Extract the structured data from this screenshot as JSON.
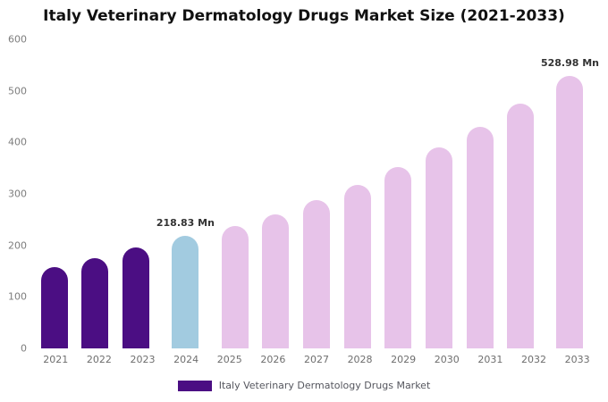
{
  "title": "Italy Veterinary Dermatology Drugs Market Size (2021-2033)",
  "legend": {
    "label": "Italy Veterinary Dermatology Drugs Market",
    "swatch_color": "#4b0e83"
  },
  "colors": {
    "dark_purple": "#4b0e83",
    "highlight_blue": "#a2cbe0",
    "forecast_pink": "#e7c3e9",
    "title_text": "#111111",
    "axis_text": "#7d7d7d",
    "annotation_text": "#333333",
    "background": "#ffffff"
  },
  "chart_data": {
    "type": "bar",
    "title": "Italy Veterinary Dermatology Drugs Market Size (2021-2033)",
    "xlabel": "",
    "ylabel": "",
    "ylim": [
      0,
      600
    ],
    "yticks": [
      0,
      100,
      200,
      300,
      400,
      500,
      600
    ],
    "grid": false,
    "legend_position": "bottom",
    "categories": [
      "2021",
      "2022",
      "2023",
      "2024",
      "2025",
      "2026",
      "2027",
      "2028",
      "2029",
      "2030",
      "2031",
      "2032",
      "2033"
    ],
    "values": [
      158,
      175,
      196,
      218.83,
      238,
      260,
      288,
      318,
      352,
      390,
      430,
      475,
      528.98
    ],
    "bar_colors": [
      "#4b0e83",
      "#4b0e83",
      "#4b0e83",
      "#a2cbe0",
      "#e7c3e9",
      "#e7c3e9",
      "#e7c3e9",
      "#e7c3e9",
      "#e7c3e9",
      "#e7c3e9",
      "#e7c3e9",
      "#e7c3e9",
      "#e7c3e9"
    ],
    "annotations": [
      {
        "category": "2024",
        "text": "218.83 Mn"
      },
      {
        "category": "2033",
        "text": "528.98 Mn"
      }
    ],
    "series_name": "Italy Veterinary Dermatology Drugs Market"
  }
}
